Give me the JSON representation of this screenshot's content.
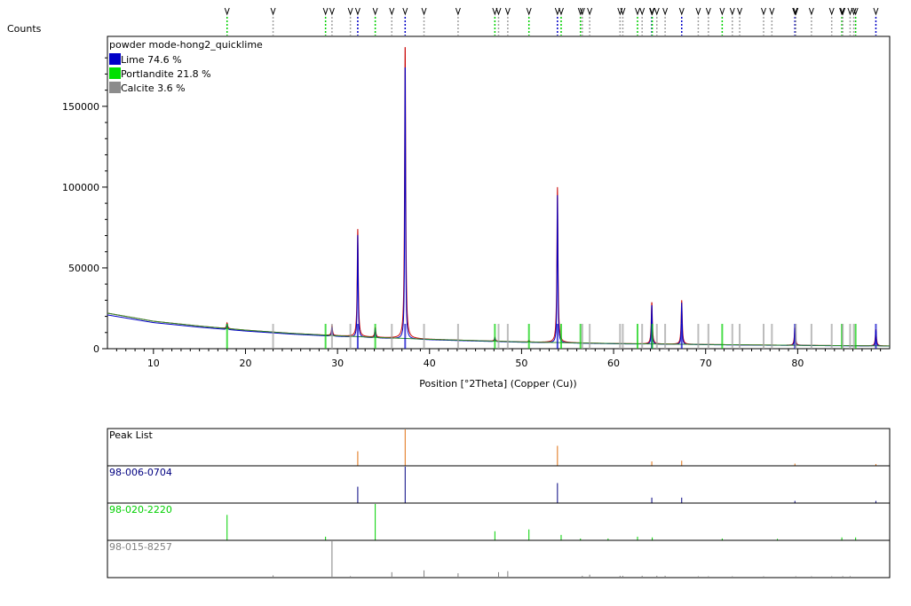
{
  "chart_data": {
    "type": "line",
    "title": "powder mode-hong2_quicklime",
    "ylabel": "Counts",
    "xlabel": "Position [°2Theta] (Copper (Cu))",
    "xlim": [
      5,
      90
    ],
    "ylim": [
      0,
      190000
    ],
    "x_ticks": [
      10,
      20,
      30,
      40,
      50,
      60,
      70,
      80
    ],
    "y_ticks": [
      0,
      50000,
      100000,
      150000
    ],
    "grid": false,
    "legend_position": "top-left",
    "legend": [
      {
        "name": "Lime 74.6 %",
        "color": "#0000c8"
      },
      {
        "name": "Portlandite 21.8 %",
        "color": "#00e000"
      },
      {
        "name": "Calcite 3.6 %",
        "color": "#8c8c8c"
      }
    ],
    "background_curve": {
      "x": [
        5,
        10,
        15,
        20,
        25,
        30,
        35,
        40,
        50,
        60,
        70,
        80,
        90
      ],
      "y": [
        22000,
        17000,
        14000,
        11500,
        9500,
        8000,
        6800,
        5800,
        4200,
        3200,
        2600,
        2100,
        1700
      ]
    },
    "observed_peaks": [
      {
        "x": 18.0,
        "y": 16000
      },
      {
        "x": 29.4,
        "y": 14000
      },
      {
        "x": 32.2,
        "y": 74000
      },
      {
        "x": 34.1,
        "y": 13000
      },
      {
        "x": 37.35,
        "y": 190000
      },
      {
        "x": 47.1,
        "y": 7000
      },
      {
        "x": 50.8,
        "y": 5000
      },
      {
        "x": 53.9,
        "y": 100000
      },
      {
        "x": 64.15,
        "y": 29000
      },
      {
        "x": 67.4,
        "y": 30000
      },
      {
        "x": 79.7,
        "y": 13000
      },
      {
        "x": 88.5,
        "y": 12000
      }
    ],
    "reference_markers": {
      "lime": [
        32.2,
        37.35,
        53.9,
        64.15,
        67.4,
        79.7,
        88.5
      ],
      "portlandite": [
        18.0,
        28.7,
        34.1,
        47.1,
        50.8,
        54.3,
        56.4,
        62.6,
        64.2,
        71.8,
        84.8,
        86.3
      ],
      "calcite": [
        23.0,
        29.4,
        31.4,
        35.9,
        39.4,
        43.1,
        47.5,
        48.5,
        56.6,
        57.4,
        60.7,
        61.0,
        63.1,
        64.7,
        65.6,
        69.2,
        70.3,
        72.9,
        73.7,
        76.3,
        77.2,
        79.8,
        81.5,
        83.7,
        84.9,
        85.7,
        86.1
      ]
    },
    "sub_panels": [
      {
        "label": "Peak List",
        "color": "#e07010",
        "lines": [
          {
            "x": 32.2,
            "h": 0.4
          },
          {
            "x": 37.35,
            "h": 1.0
          },
          {
            "x": 53.9,
            "h": 0.55
          },
          {
            "x": 64.15,
            "h": 0.12
          },
          {
            "x": 67.4,
            "h": 0.14
          },
          {
            "x": 79.7,
            "h": 0.06
          },
          {
            "x": 88.5,
            "h": 0.05
          }
        ]
      },
      {
        "label": "98-006-0704",
        "color": "#000080",
        "lines": [
          {
            "x": 32.2,
            "h": 0.45
          },
          {
            "x": 37.35,
            "h": 1.0
          },
          {
            "x": 53.9,
            "h": 0.55
          },
          {
            "x": 64.15,
            "h": 0.15
          },
          {
            "x": 67.4,
            "h": 0.15
          },
          {
            "x": 79.7,
            "h": 0.06
          },
          {
            "x": 88.5,
            "h": 0.06
          }
        ]
      },
      {
        "label": "98-020-2220",
        "color": "#00d000",
        "lines": [
          {
            "x": 18.0,
            "h": 0.7
          },
          {
            "x": 28.7,
            "h": 0.1
          },
          {
            "x": 34.1,
            "h": 1.0
          },
          {
            "x": 47.1,
            "h": 0.25
          },
          {
            "x": 50.8,
            "h": 0.3
          },
          {
            "x": 54.3,
            "h": 0.15
          },
          {
            "x": 56.4,
            "h": 0.05
          },
          {
            "x": 59.4,
            "h": 0.05
          },
          {
            "x": 62.6,
            "h": 0.1
          },
          {
            "x": 64.2,
            "h": 0.08
          },
          {
            "x": 71.8,
            "h": 0.05
          },
          {
            "x": 77.8,
            "h": 0.04
          },
          {
            "x": 84.8,
            "h": 0.08
          },
          {
            "x": 86.3,
            "h": 0.08
          }
        ]
      },
      {
        "label": "98-015-8257",
        "color": "#808080",
        "lines": [
          {
            "x": 23.0,
            "h": 0.06
          },
          {
            "x": 29.4,
            "h": 1.0
          },
          {
            "x": 31.4,
            "h": 0.04
          },
          {
            "x": 35.9,
            "h": 0.15
          },
          {
            "x": 39.4,
            "h": 0.2
          },
          {
            "x": 43.1,
            "h": 0.12
          },
          {
            "x": 47.5,
            "h": 0.15
          },
          {
            "x": 48.5,
            "h": 0.18
          },
          {
            "x": 56.6,
            "h": 0.05
          },
          {
            "x": 57.4,
            "h": 0.08
          },
          {
            "x": 60.7,
            "h": 0.05
          },
          {
            "x": 61.0,
            "h": 0.05
          },
          {
            "x": 63.1,
            "h": 0.05
          },
          {
            "x": 64.7,
            "h": 0.05
          },
          {
            "x": 65.6,
            "h": 0.05
          },
          {
            "x": 69.2,
            "h": 0.03
          },
          {
            "x": 70.3,
            "h": 0.03
          },
          {
            "x": 72.9,
            "h": 0.03
          },
          {
            "x": 76.3,
            "h": 0.03
          },
          {
            "x": 79.8,
            "h": 0.03
          },
          {
            "x": 81.5,
            "h": 0.03
          },
          {
            "x": 83.7,
            "h": 0.03
          },
          {
            "x": 84.9,
            "h": 0.04
          },
          {
            "x": 85.7,
            "h": 0.04
          }
        ]
      }
    ]
  }
}
